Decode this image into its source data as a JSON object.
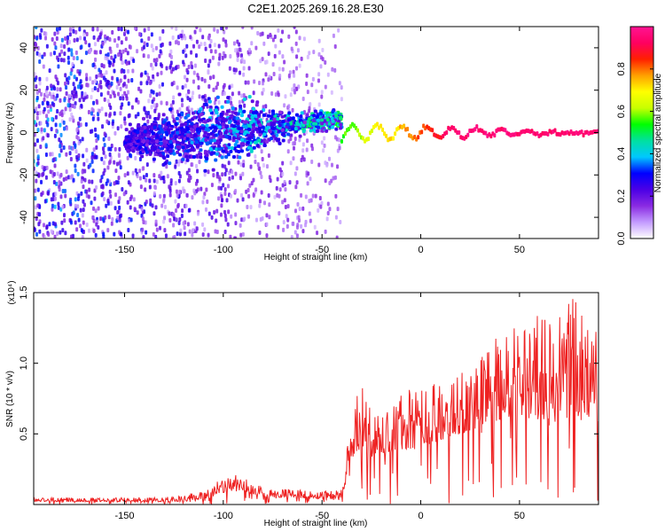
{
  "title": "C2E1.2025.269.16.28.E30",
  "chart_data": [
    {
      "type": "heatmap",
      "xlabel": "Height of straight line (km)",
      "ylabel": "Frequency (Hz)",
      "xlim": [
        -196,
        90
      ],
      "ylim": [
        -50,
        50
      ],
      "xticks": [
        -150,
        -100,
        -50,
        0,
        50
      ],
      "yticks": [
        -40,
        -20,
        0,
        20,
        40
      ],
      "colorbar": {
        "label": "Normalized spectral amplitude",
        "range": [
          0,
          1
        ],
        "ticks": [
          "0.0",
          "0.2",
          "0.4",
          "0.6",
          "0.8"
        ],
        "tick_values": [
          0.0,
          0.2,
          0.4,
          0.6,
          0.8
        ],
        "colors": [
          "#ffffff",
          "#c39bff",
          "#8a2be2",
          "#4b00e6",
          "#0000ff",
          "#00c8ff",
          "#00e0a0",
          "#00ff00",
          "#c8ff00",
          "#ffff00",
          "#ffa000",
          "#ff2000",
          "#ff0060",
          "#ff1493"
        ]
      },
      "description_values": {
        "noise_region_x": [
          -196,
          -40
        ],
        "line_start_x": -40,
        "line_frequency_hz": 0,
        "peak_band_center_x": [
          -150,
          -40
        ],
        "peak_band_center_freq_hz": [
          -4,
          6
        ]
      }
    },
    {
      "type": "line",
      "xlabel": "Height of straight line (km)",
      "ylabel": "SNR (10 * v/v)",
      "multiplier_label": "(x10⁴)",
      "xlim": [
        -196,
        90
      ],
      "ylim": [
        0,
        1.5
      ],
      "xticks": [
        -150,
        -100,
        -50,
        0,
        50
      ],
      "yticks": [
        0.5,
        1.0,
        1.5
      ],
      "ytick_labels": [
        "0.5",
        "1.0",
        "1.5"
      ],
      "series_color": "#ee2222",
      "envelope": {
        "x": [
          -196,
          -150,
          -120,
          -105,
          -95,
          -85,
          -75,
          -65,
          -55,
          -45,
          -40,
          -36,
          -30,
          -25,
          -20,
          -10,
          0,
          10,
          20,
          30,
          40,
          50,
          60,
          70,
          80,
          90
        ],
        "base": [
          0.02,
          0.02,
          0.02,
          0.05,
          0.1,
          0.07,
          0.05,
          0.05,
          0.04,
          0.04,
          0.05,
          0.25,
          0.3,
          0.32,
          0.35,
          0.38,
          0.4,
          0.45,
          0.5,
          0.55,
          0.6,
          0.62,
          0.6,
          0.62,
          0.6,
          0.58
        ],
        "peak": [
          0.05,
          0.05,
          0.06,
          0.15,
          0.22,
          0.16,
          0.12,
          0.11,
          0.1,
          0.1,
          0.12,
          0.55,
          0.9,
          0.75,
          0.7,
          0.8,
          0.85,
          0.9,
          1.0,
          1.1,
          1.2,
          1.3,
          1.35,
          1.4,
          1.5,
          1.2
        ]
      }
    }
  ]
}
